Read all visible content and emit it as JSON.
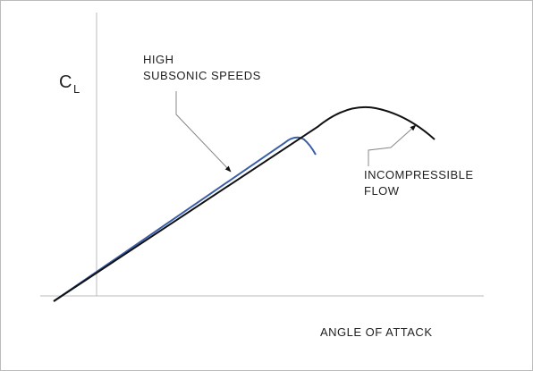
{
  "axis_labels": {
    "y": "C",
    "y_subscript": "L",
    "x": "ANGLE OF ATTACK"
  },
  "annotations": [
    {
      "lines": [
        "HIGH",
        "SUBSONIC SPEEDS"
      ]
    },
    {
      "lines": [
        "INCOMPRESSIBLE",
        "FLOW"
      ]
    }
  ]
}
